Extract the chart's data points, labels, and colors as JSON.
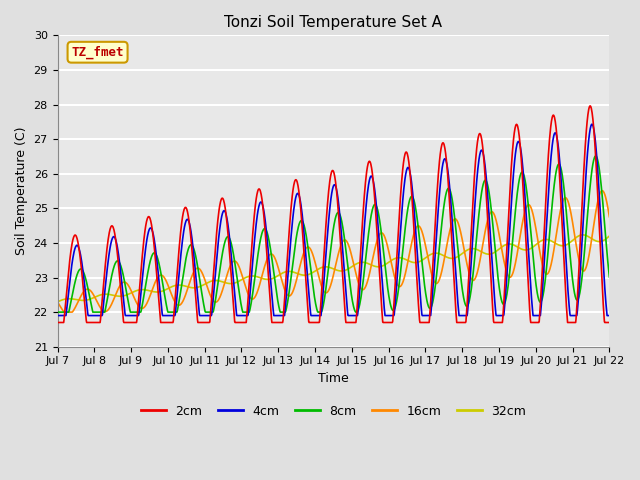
{
  "title": "Tonzi Soil Temperature Set A",
  "xlabel": "Time",
  "ylabel": "Soil Temperature (C)",
  "ylim": [
    21.0,
    30.0
  ],
  "yticks": [
    21.0,
    22.0,
    23.0,
    24.0,
    25.0,
    26.0,
    27.0,
    28.0,
    29.0,
    30.0
  ],
  "xtick_labels": [
    "Jul 7",
    "Jul 8",
    "Jul 9",
    "Jul 10",
    "Jul 11",
    "Jul 12",
    "Jul 13",
    "Jul 14",
    "Jul 15",
    "Jul 16",
    "Jul 17",
    "Jul 18",
    "Jul 19",
    "Jul 20",
    "Jul 21",
    "Jul 22"
  ],
  "series_colors": {
    "2cm": "#ee0000",
    "4cm": "#0000dd",
    "8cm": "#00bb00",
    "16cm": "#ff8800",
    "32cm": "#cccc00"
  },
  "annotation_text": "TZ_fmet",
  "annotation_color": "#bb0000",
  "annotation_bg": "#ffffcc",
  "annotation_edge": "#cc9900",
  "figure_bg": "#e0e0e0",
  "plot_bg": "#e8e8e8",
  "grid_color": "#ffffff",
  "title_fontsize": 11,
  "label_fontsize": 9,
  "tick_fontsize": 8,
  "legend_fontsize": 9,
  "linewidth": 1.2
}
